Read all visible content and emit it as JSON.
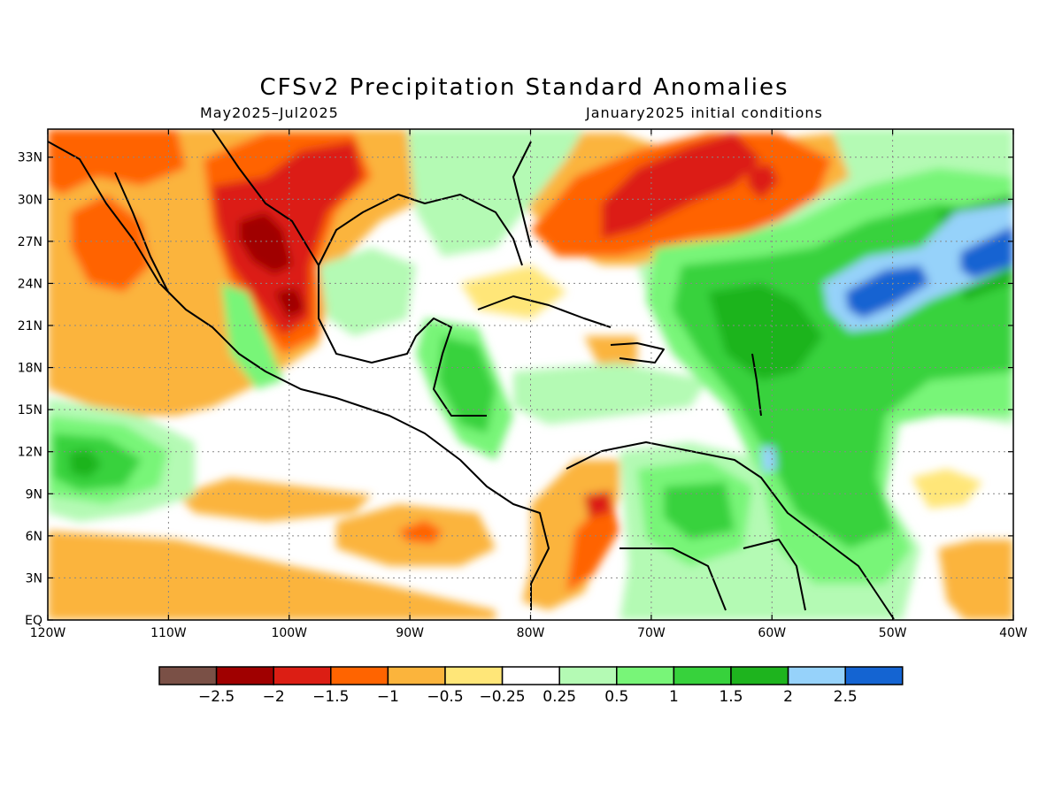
{
  "title": "CFSv2 Precipitation Standard Anomalies",
  "subtitle_left": "May2025–Jul2025",
  "subtitle_right": "January2025 initial conditions",
  "map": {
    "lon_range": [
      -120,
      -40
    ],
    "lat_range": [
      0,
      35
    ],
    "lon_ticks": [
      "120W",
      "110W",
      "100W",
      "90W",
      "80W",
      "70W",
      "60W",
      "50W",
      "40W"
    ],
    "lat_ticks": [
      "EQ",
      "3N",
      "6N",
      "9N",
      "12N",
      "15N",
      "18N",
      "21N",
      "24N",
      "27N",
      "30N",
      "33N"
    ],
    "gridlines": "dotted"
  },
  "colorbar": {
    "colors": [
      "#7a5046",
      "#a00000",
      "#dc1e14",
      "#ff6400",
      "#fbb43c",
      "#ffe678",
      "#ffffff",
      "#b4fab4",
      "#78f578",
      "#37d23c",
      "#1eb41e",
      "#96d2fa",
      "#1464d2"
    ],
    "labels": [
      "−2.5",
      "−2",
      "−1.5",
      "−1",
      "−0.5",
      "−0.25",
      "0.25",
      "0.5",
      "1",
      "1.5",
      "2",
      "2.5"
    ]
  }
}
